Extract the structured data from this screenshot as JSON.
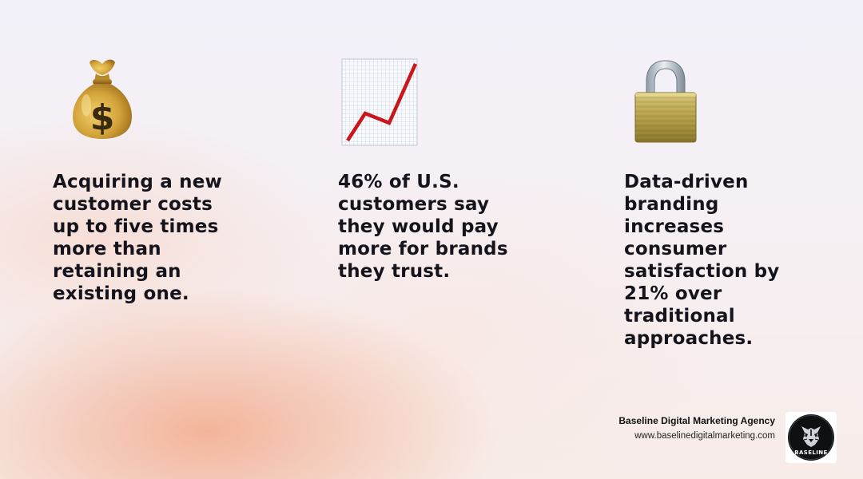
{
  "stats": [
    {
      "icon": "money-bag-icon",
      "text": "Acquiring a new customer costs up to five times more than retaining an existing one."
    },
    {
      "icon": "chart-increasing-icon",
      "text": "46% of U.S. customers say they would pay more for brands they trust."
    },
    {
      "icon": "padlock-icon",
      "text": "Data-driven branding increases consumer satisfaction by 21% over traditional approaches."
    }
  ],
  "footer": {
    "agency_name": "Baseline Digital Marketing Agency",
    "website": "www.baselinedigitalmarketing.com",
    "logo_text": "BASELINE"
  },
  "colors": {
    "text": "#15141d",
    "accent_peach": "#f2aa8c",
    "chart_line": "#cc1111",
    "bag_gold": "#c9982f",
    "lock_gold": "#b6a24e"
  }
}
